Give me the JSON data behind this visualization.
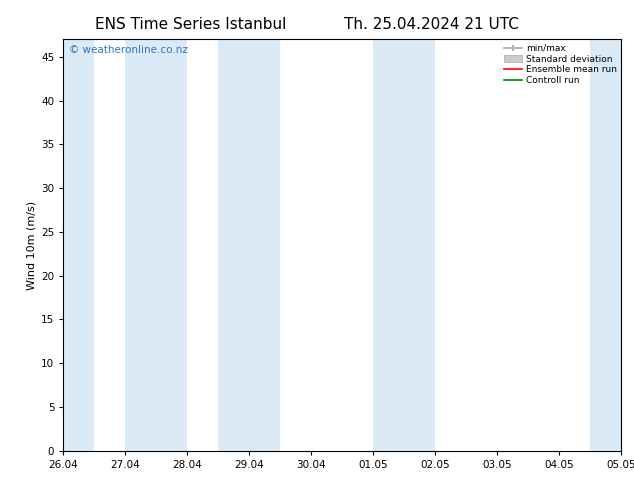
{
  "title_left": "ENS Time Series Istanbul",
  "title_right": "Th. 25.04.2024 21 UTC",
  "ylabel": "Wind 10m (m/s)",
  "watermark": "© weatheronline.co.nz",
  "xtick_labels": [
    "26.04",
    "27.04",
    "28.04",
    "29.04",
    "30.04",
    "01.05",
    "02.05",
    "03.05",
    "04.05",
    "05.05"
  ],
  "xlim": [
    0,
    9
  ],
  "ylim": [
    0,
    47
  ],
  "ytick_vals": [
    0,
    5,
    10,
    15,
    20,
    25,
    30,
    35,
    40,
    45
  ],
  "shaded_bands": [
    [
      0.0,
      0.5
    ],
    [
      1.0,
      2.0
    ],
    [
      2.5,
      3.5
    ],
    [
      5.0,
      6.0
    ],
    [
      8.5,
      9.0
    ]
  ],
  "shaded_color": "#daeaf7",
  "legend_labels": [
    "min/max",
    "Standard deviation",
    "Ensemble mean run",
    "Controll run"
  ],
  "legend_colors": [
    "#aaaaaa",
    "#cccccc",
    "#ff0000",
    "#008000"
  ],
  "bg_color": "#ffffff",
  "plot_bg_color": "#ffffff",
  "spine_color": "#000000",
  "tick_color": "#000000",
  "title_fontsize": 11,
  "label_fontsize": 8,
  "tick_fontsize": 7.5,
  "watermark_color": "#3377bb",
  "watermark_fontsize": 7.5
}
